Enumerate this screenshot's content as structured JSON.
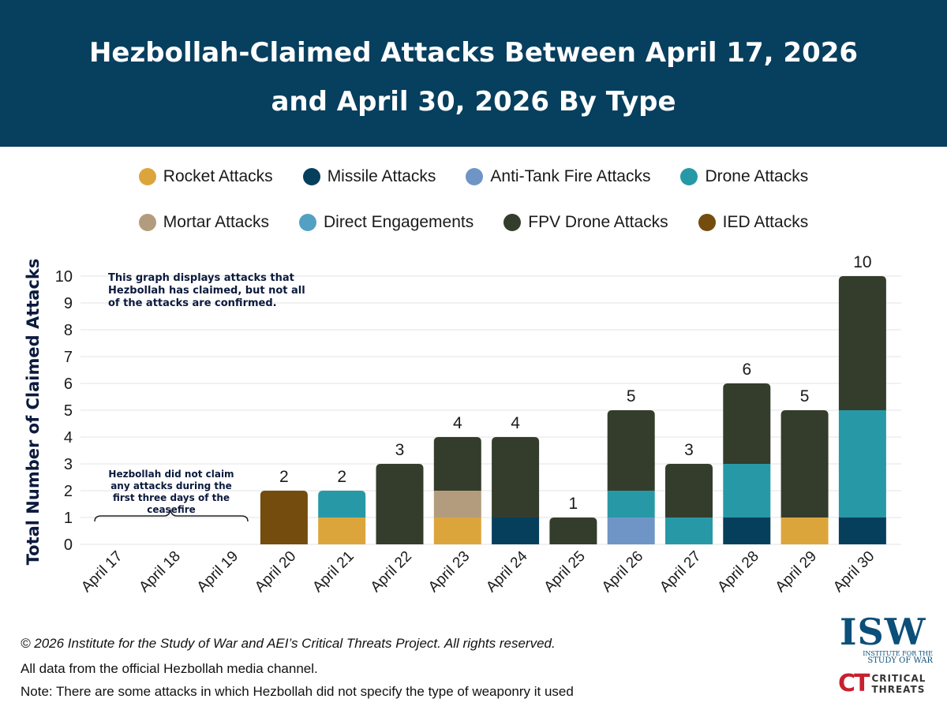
{
  "title": {
    "line1": "Hezbollah-Claimed Attacks Between April 17, 2026",
    "line2": "and April 30, 2026 By Type"
  },
  "legend": {
    "row1": [
      {
        "label": "Rocket Attacks",
        "color": "#dca53c"
      },
      {
        "label": "Missile Attacks",
        "color": "#063f5c"
      },
      {
        "label": "Anti-Tank Fire Attacks",
        "color": "#6f95c6"
      },
      {
        "label": "Drone Attacks",
        "color": "#2799a6"
      }
    ],
    "row2": [
      {
        "label": "Mortar Attacks",
        "color": "#b39c7d"
      },
      {
        "label": "Direct Engagements",
        "color": "#52a1c2"
      },
      {
        "label": "FPV Drone Attacks",
        "color": "#343d2b"
      },
      {
        "label": "IED Attacks",
        "color": "#744c0e"
      }
    ]
  },
  "chart_data": {
    "type": "bar",
    "stacked": true,
    "ylabel": "Total Number of Claimed Attacks",
    "xlabel": "",
    "ylim": [
      0,
      10
    ],
    "yticks": [
      0,
      1,
      2,
      3,
      4,
      5,
      6,
      7,
      8,
      9,
      10
    ],
    "grid": true,
    "legend_position": "top",
    "categories": [
      "April 17",
      "April 18",
      "April 19",
      "April 20",
      "April 21",
      "April 22",
      "April 23",
      "April 24",
      "April 25",
      "April 26",
      "April 27",
      "April 28",
      "April 29",
      "April 30"
    ],
    "series": [
      {
        "name": "Rocket Attacks",
        "color": "#dca53c",
        "values": [
          0,
          0,
          0,
          0,
          1,
          0,
          1,
          0,
          0,
          0,
          0,
          0,
          1,
          0
        ]
      },
      {
        "name": "Missile Attacks",
        "color": "#063f5c",
        "values": [
          0,
          0,
          0,
          0,
          0,
          0,
          0,
          1,
          0,
          0,
          0,
          1,
          0,
          1
        ]
      },
      {
        "name": "Anti-Tank Fire Attacks",
        "color": "#6f95c6",
        "values": [
          0,
          0,
          0,
          0,
          0,
          0,
          0,
          0,
          0,
          1,
          0,
          0,
          0,
          0
        ]
      },
      {
        "name": "Drone Attacks",
        "color": "#2799a6",
        "values": [
          0,
          0,
          0,
          0,
          1,
          0,
          0,
          0,
          0,
          1,
          1,
          2,
          0,
          4
        ]
      },
      {
        "name": "Mortar Attacks",
        "color": "#b39c7d",
        "values": [
          0,
          0,
          0,
          0,
          0,
          0,
          1,
          0,
          0,
          0,
          0,
          0,
          0,
          0
        ]
      },
      {
        "name": "Direct Engagements",
        "color": "#52a1c2",
        "values": [
          0,
          0,
          0,
          0,
          0,
          0,
          0,
          0,
          0,
          0,
          0,
          0,
          0,
          0
        ]
      },
      {
        "name": "FPV Drone Attacks",
        "color": "#343d2b",
        "values": [
          0,
          0,
          0,
          0,
          0,
          3,
          2,
          3,
          1,
          3,
          2,
          3,
          4,
          5
        ]
      },
      {
        "name": "IED Attacks",
        "color": "#744c0e",
        "values": [
          0,
          0,
          0,
          2,
          0,
          0,
          0,
          0,
          0,
          0,
          0,
          0,
          0,
          0
        ]
      }
    ],
    "totals": [
      null,
      null,
      null,
      2,
      2,
      3,
      4,
      4,
      1,
      5,
      3,
      6,
      5,
      10
    ],
    "annotations": [
      "This graph displays attacks that Hezbollah has claimed, but not all of the attacks are confirmed.",
      "Hezbollah did not claim any attacks during the first three days of the ceasefire"
    ]
  },
  "footer": {
    "copyright": "© 2026 Institute for the Study of War and AEI’s Critical Threats Project. All rights reserved.",
    "source": "All data from the official Hezbollah media channel.",
    "note": "Note: There are some attacks in which Hezbollah did not specify the type of weaponry it used"
  },
  "logos": {
    "isw_mark": "ISW",
    "isw_sub_line1": "INSTITUTE FOR THE",
    "isw_sub_line2": "STUDY OF WAR",
    "ct_mark": "CT",
    "ct_line1": "CRITICAL",
    "ct_line2": "THREATS"
  }
}
